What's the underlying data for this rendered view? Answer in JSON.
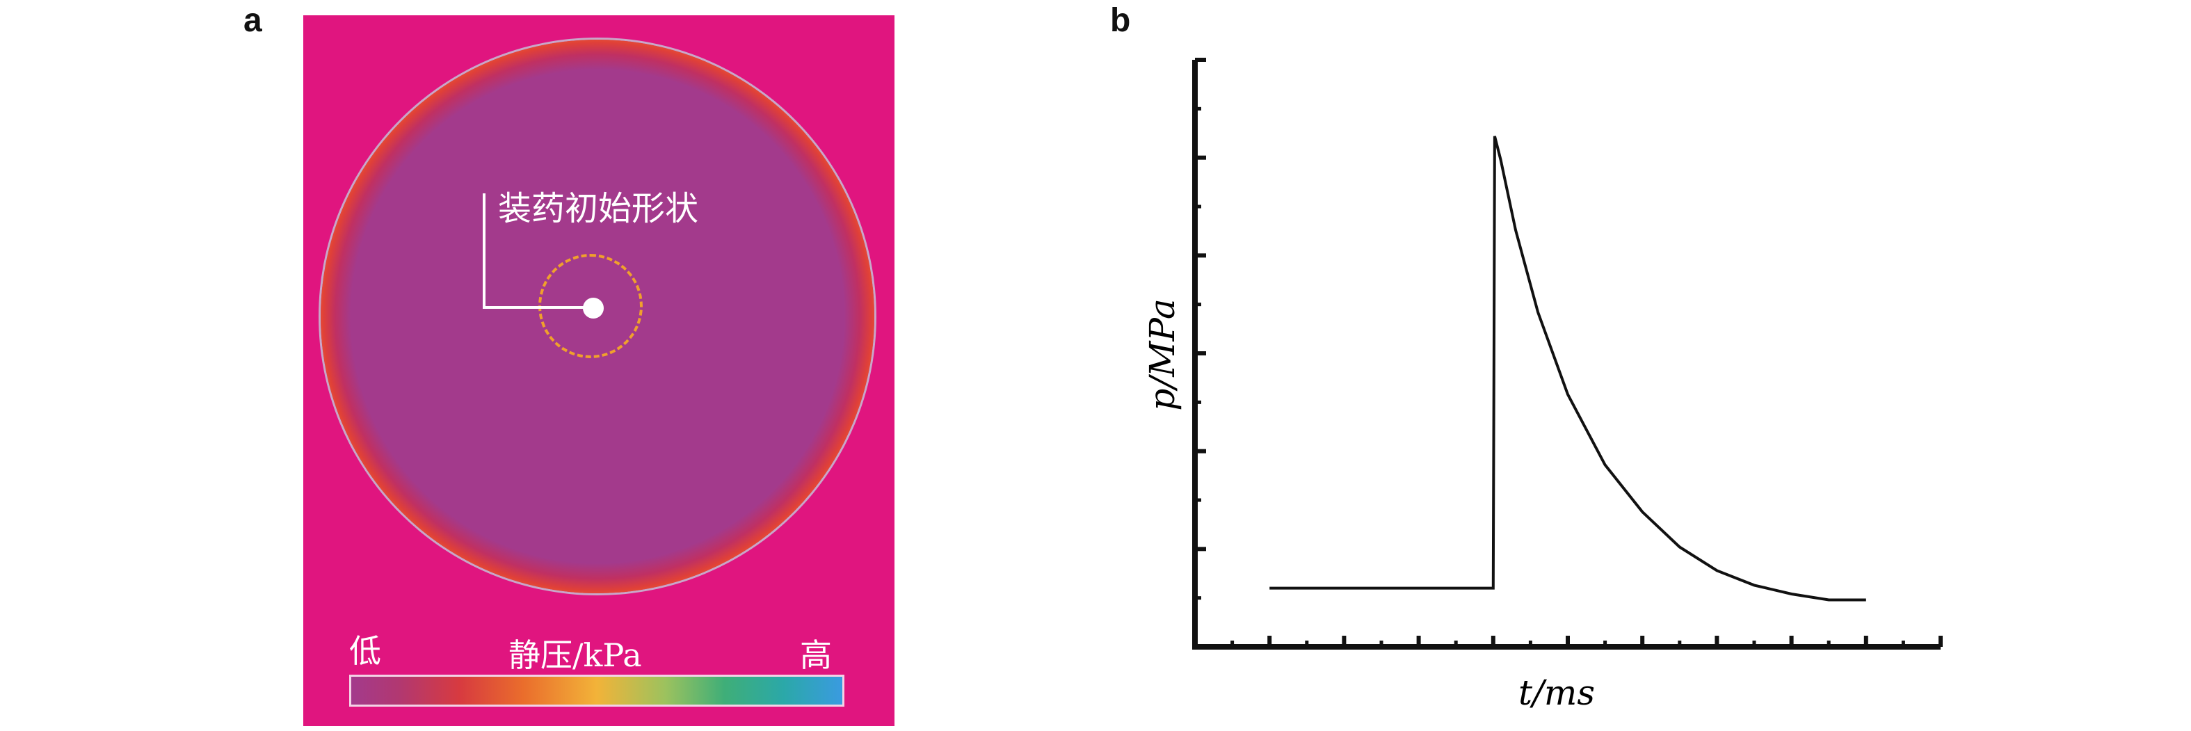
{
  "panel_a": {
    "letter": "a",
    "charge_label": "装药初始形状",
    "colorbar": {
      "low_label": "低",
      "title": "静压/kPa",
      "high_label": "高"
    },
    "colors": {
      "background": "#e0157f",
      "inner_region": "#a33a8c",
      "charge_outline": "#f0a02c"
    }
  },
  "panel_b": {
    "letter": "b"
  },
  "chart_data": {
    "type": "line",
    "title": "",
    "xlabel": "t/ms",
    "ylabel": "p/MPa",
    "xlim": [
      0,
      100
    ],
    "ylim": [
      0,
      100
    ],
    "grid": false,
    "legend": "none",
    "x_major_ticks": 10,
    "y_major_ticks": 6,
    "series": [
      {
        "color": "#111111",
        "points": [
          [
            10,
            10
          ],
          [
            40,
            10
          ],
          [
            40.2,
            87
          ],
          [
            41,
            83
          ],
          [
            43,
            71
          ],
          [
            46,
            57
          ],
          [
            50,
            43
          ],
          [
            55,
            31
          ],
          [
            60,
            23
          ],
          [
            65,
            17
          ],
          [
            70,
            13
          ],
          [
            75,
            10.5
          ],
          [
            80,
            9
          ],
          [
            85,
            8
          ],
          [
            90,
            8
          ]
        ]
      }
    ]
  }
}
